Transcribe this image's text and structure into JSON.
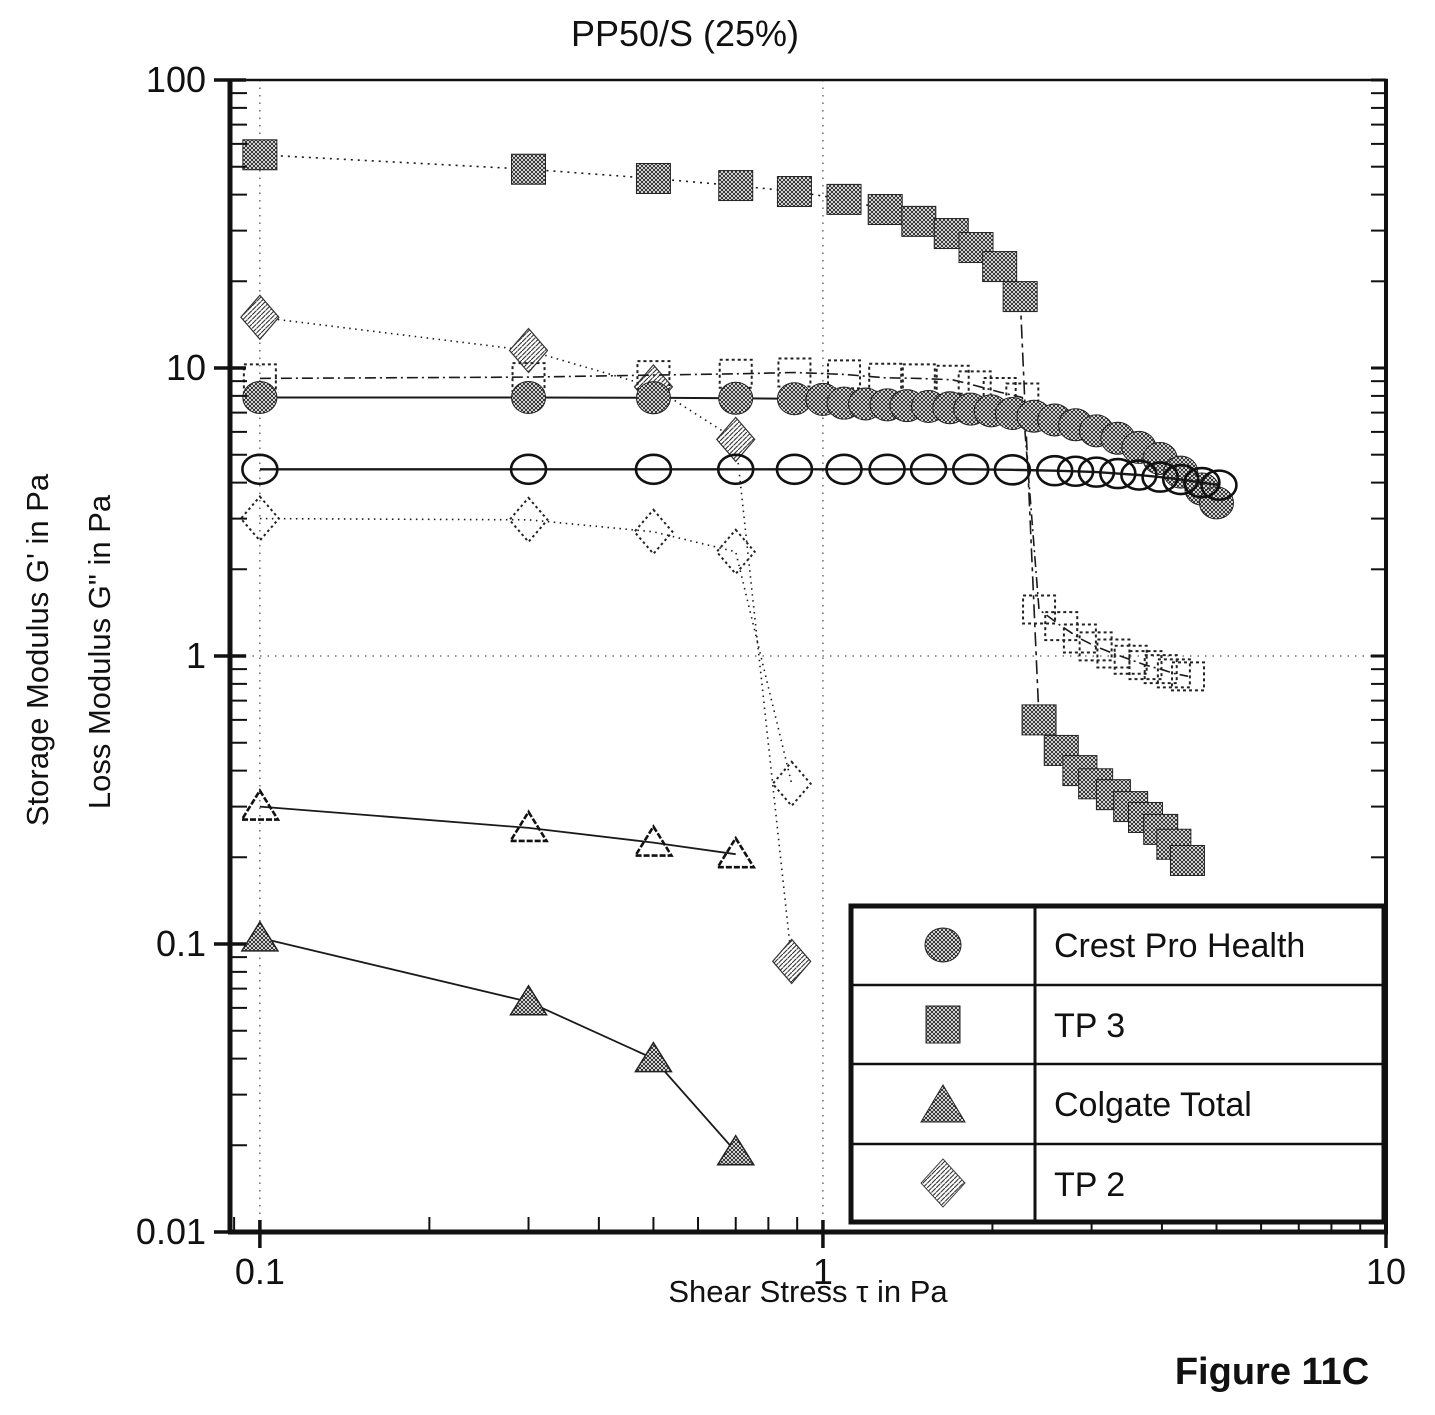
{
  "title": "PP50/S (25%)",
  "figure_caption": "Figure 11C",
  "axes": {
    "x": {
      "label": "Shear Stress τ in Pa",
      "min": 0.0885,
      "max": 10,
      "scale": "log",
      "ticks": [
        {
          "v": 0.1,
          "label": "0.1"
        },
        {
          "v": 1,
          "label": "1"
        },
        {
          "v": 10,
          "label": "10"
        }
      ],
      "gridlines": [
        0.1,
        1
      ]
    },
    "y": {
      "label_line1": "Storage Modulus G' in Pa",
      "label_line2": "Loss Modulus G\" in Pa",
      "min": 0.01,
      "max": 100,
      "scale": "log",
      "ticks": [
        {
          "v": 100,
          "label": "100"
        },
        {
          "v": 10,
          "label": "10"
        },
        {
          "v": 1,
          "label": "1"
        },
        {
          "v": 0.1,
          "label": "0.1"
        },
        {
          "v": 0.01,
          "label": "0.01"
        }
      ],
      "gridlines": [
        1
      ]
    }
  },
  "legend": {
    "entries": [
      {
        "symbol": "circle-dark",
        "label": "Crest Pro Health"
      },
      {
        "symbol": "square-dark",
        "label": "TP 3"
      },
      {
        "symbol": "triangle-dark",
        "label": "Colgate Total"
      },
      {
        "symbol": "diamond-light",
        "label": "TP 2"
      }
    ]
  },
  "chart_data": {
    "type": "line",
    "xlabel": "Shear Stress τ in Pa",
    "ylabel": "Storage Modulus G' in Pa / Loss Modulus G\" in Pa",
    "xlim": [
      0.0885,
      10
    ],
    "ylim": [
      0.01,
      100
    ],
    "grid": "dotted at x=0.1, x=1, y=1",
    "legend_position": "lower right inset table",
    "series": [
      {
        "id": "tp2-g-prime",
        "name": "TP 2 Storage Modulus G'",
        "marker": "diamond-dark",
        "line_dash": "1.5 4.5",
        "line_width": 1.6,
        "branches": [
          [
            [
              0.1,
              15
            ],
            [
              0.3,
              11.5
            ],
            [
              0.5,
              8.6
            ],
            [
              0.7,
              5.65
            ],
            [
              0.88,
              0.087
            ]
          ]
        ]
      },
      {
        "id": "tp2-g-doubleprime",
        "name": "TP 2 Loss Modulus G\"",
        "marker": "diamond-open",
        "line_dash": "1.5 4.5",
        "line_width": 1.6,
        "branches": [
          [
            [
              0.1,
              3.0
            ],
            [
              0.3,
              2.97
            ],
            [
              0.5,
              2.7
            ],
            [
              0.7,
              2.3
            ],
            [
              0.88,
              0.36
            ]
          ]
        ]
      },
      {
        "id": "colgate-g-prime",
        "name": "Colgate Total Storage Modulus G'",
        "marker": "triangle-dark",
        "line_dash": "",
        "line_width": 1.8,
        "branches": [
          [
            [
              0.1,
              0.105
            ],
            [
              0.3,
              0.063
            ],
            [
              0.5,
              0.04
            ],
            [
              0.7,
              0.019
            ]
          ]
        ]
      },
      {
        "id": "colgate-g-doubleprime",
        "name": "Colgate Total Loss Modulus G\"",
        "marker": "triangle-open",
        "line_dash": "",
        "line_width": 1.8,
        "branches": [
          [
            [
              0.1,
              0.3
            ],
            [
              0.3,
              0.253
            ],
            [
              0.5,
              0.225
            ],
            [
              0.7,
              0.205
            ]
          ]
        ]
      },
      {
        "id": "tp3-g-doubleprime",
        "name": "TP 3 Loss Modulus G\"",
        "marker": "square-open",
        "line_dash": "11 4 2 4",
        "line_width": 1.6,
        "branches": [
          [
            [
              0.1,
              9.2
            ],
            [
              0.3,
              9.3
            ],
            [
              0.5,
              9.45
            ],
            [
              0.7,
              9.55
            ],
            [
              0.89,
              9.65
            ],
            [
              1.09,
              9.5
            ],
            [
              1.29,
              9.25
            ],
            [
              1.48,
              9.2
            ],
            [
              1.7,
              9.1
            ],
            [
              1.86,
              8.7
            ],
            [
              2.06,
              8.25
            ],
            [
              2.26,
              7.9
            ],
            [
              2.42,
              1.45
            ],
            [
              2.65,
              1.27
            ],
            [
              2.86,
              1.15
            ],
            [
              3.05,
              1.08
            ],
            [
              3.28,
              1.02
            ],
            [
              3.52,
              0.97
            ],
            [
              3.74,
              0.93
            ],
            [
              3.98,
              0.9
            ],
            [
              4.2,
              0.87
            ],
            [
              4.45,
              0.85
            ]
          ]
        ]
      },
      {
        "id": "tp3-g-prime",
        "name": "TP 3 Storage Modulus G'",
        "marker": "square-dark",
        "line_dash": "2 5",
        "line_width": 1.6,
        "branches": [
          [
            [
              0.1,
              55
            ],
            [
              0.3,
              49
            ],
            [
              0.5,
              45.5
            ],
            [
              0.7,
              43
            ],
            [
              0.89,
              41
            ],
            [
              1.09,
              38.5
            ],
            [
              1.29,
              35.5
            ],
            [
              1.48,
              32.3
            ],
            [
              1.69,
              29.3
            ],
            [
              1.87,
              26.2
            ],
            [
              2.06,
              22.5
            ],
            [
              2.24,
              17.7
            ]
          ],
          [
            [
              2.42,
              0.6
            ],
            [
              2.65,
              0.47
            ],
            [
              2.86,
              0.4
            ],
            [
              3.05,
              0.36
            ],
            [
              3.28,
              0.33
            ],
            [
              3.52,
              0.3
            ],
            [
              3.74,
              0.275
            ],
            [
              3.98,
              0.25
            ],
            [
              4.2,
              0.222
            ],
            [
              4.44,
              0.195
            ]
          ]
        ],
        "connector_dash": "14 5 4 5"
      },
      {
        "id": "crest-g-prime",
        "name": "Crest Pro Health Storage Modulus G'",
        "marker": "circle-dark",
        "line_dash": "",
        "line_width": 2,
        "branches": [
          [
            [
              0.1,
              7.9
            ],
            [
              0.3,
              7.9
            ],
            [
              0.5,
              7.88
            ],
            [
              0.7,
              7.85
            ],
            [
              0.89,
              7.82
            ],
            [
              1.0,
              7.78
            ],
            [
              1.09,
              7.55
            ],
            [
              1.19,
              7.5
            ],
            [
              1.3,
              7.45
            ],
            [
              1.41,
              7.4
            ],
            [
              1.54,
              7.35
            ],
            [
              1.68,
              7.28
            ],
            [
              1.83,
              7.2
            ],
            [
              1.99,
              7.1
            ],
            [
              2.17,
              6.95
            ],
            [
              2.37,
              6.8
            ],
            [
              2.58,
              6.6
            ],
            [
              2.81,
              6.35
            ],
            [
              3.06,
              6.05
            ],
            [
              3.34,
              5.7
            ],
            [
              3.64,
              5.3
            ],
            [
              3.97,
              4.85
            ],
            [
              4.32,
              4.35
            ],
            [
              4.71,
              3.8
            ],
            [
              5.0,
              3.4
            ]
          ]
        ]
      },
      {
        "id": "crest-g-doubleprime",
        "name": "Crest Pro Health Loss Modulus G\"",
        "marker": "circle-open",
        "line_dash": "",
        "line_width": 2.4,
        "branches": [
          [
            [
              0.1,
              4.45
            ],
            [
              0.3,
              4.45
            ],
            [
              0.5,
              4.45
            ],
            [
              0.7,
              4.45
            ],
            [
              0.89,
              4.45
            ],
            [
              1.09,
              4.45
            ],
            [
              1.3,
              4.45
            ],
            [
              1.54,
              4.45
            ],
            [
              1.83,
              4.45
            ],
            [
              2.17,
              4.43
            ],
            [
              2.58,
              4.4
            ],
            [
              2.81,
              4.38
            ],
            [
              3.06,
              4.35
            ],
            [
              3.34,
              4.3
            ],
            [
              3.64,
              4.25
            ],
            [
              3.97,
              4.18
            ],
            [
              4.32,
              4.1
            ],
            [
              4.71,
              4.0
            ],
            [
              5.05,
              3.92
            ]
          ]
        ]
      }
    ]
  }
}
